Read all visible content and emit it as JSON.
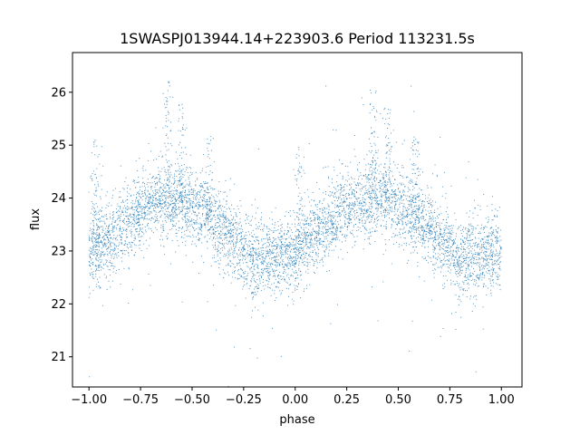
{
  "chart_data": {
    "type": "scatter",
    "title": "1SWASPJ013944.14+223903.6 Period 113231.5s",
    "xlabel": "phase",
    "ylabel": "flux",
    "xlim": [
      -1.08,
      1.1
    ],
    "ylim": [
      20.43,
      26.75
    ],
    "xticks": [
      -1.0,
      -0.75,
      -0.5,
      -0.25,
      0.0,
      0.25,
      0.5,
      0.75,
      1.0
    ],
    "xtick_labels": [
      "−1.00",
      "−0.75",
      "−0.50",
      "−0.25",
      "0.00",
      "0.25",
      "0.50",
      "0.75",
      "1.00"
    ],
    "yticks": [
      21,
      22,
      23,
      24,
      25,
      26
    ],
    "ytick_labels": [
      "21",
      "22",
      "23",
      "24",
      "25",
      "26"
    ],
    "grid": false,
    "legend": "none",
    "marker_color": "#1f77b4",
    "series": [
      {
        "profile_x": [
          -1.0,
          -0.9,
          -0.8,
          -0.7,
          -0.6,
          -0.5,
          -0.4,
          -0.3,
          -0.2,
          -0.1,
          0.0,
          0.1,
          0.2,
          0.3,
          0.4,
          0.5,
          0.6,
          0.7,
          0.8,
          0.9,
          1.0
        ],
        "profile_y": [
          23.0,
          23.2,
          23.6,
          23.9,
          24.0,
          23.85,
          23.6,
          23.2,
          22.8,
          22.85,
          23.0,
          23.3,
          23.7,
          23.95,
          24.0,
          23.85,
          23.6,
          23.2,
          22.85,
          22.9,
          23.0
        ],
        "scatter_sigma": 0.35,
        "point_count": 6000,
        "flare_phases": [
          -0.97,
          -0.62,
          -0.55,
          -0.42,
          0.02,
          0.38,
          0.45,
          0.58
        ],
        "flare_levels": [
          25.1,
          26.2,
          25.8,
          25.2,
          25.0,
          26.2,
          25.7,
          25.2
        ]
      }
    ]
  }
}
